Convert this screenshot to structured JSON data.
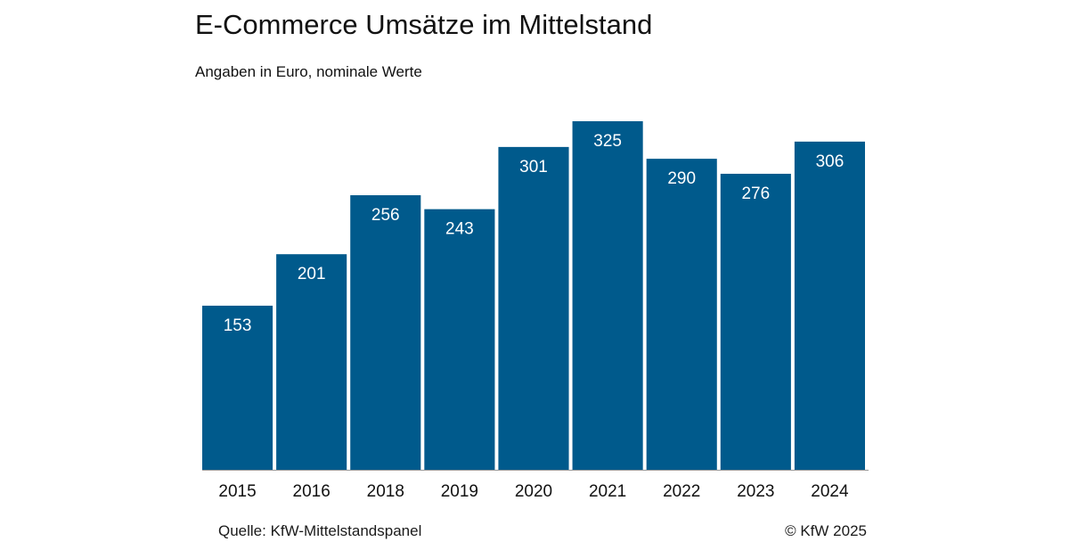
{
  "colors": {
    "bar": "#005a8c",
    "axis": "#9a9a9a",
    "label_on_bar": "#ffffff"
  },
  "footer": {
    "source": "Quelle: KfW-Mittelstandspanel",
    "copyright": "© KfW 2025"
  },
  "chart_data": {
    "type": "bar",
    "title": "E-Commerce Umsätze im Mittelstand",
    "subtitle": "Angaben in Euro, nominale Werte",
    "categories": [
      "2015",
      "2016",
      "2018",
      "2019",
      "2020",
      "2021",
      "2022",
      "2023",
      "2024"
    ],
    "values": [
      153,
      201,
      256,
      243,
      301,
      325,
      290,
      276,
      306
    ],
    "xlabel": "",
    "ylabel": "",
    "ylim": [
      0,
      325
    ],
    "grid": false,
    "legend": "none",
    "data_labels": "inside-top"
  }
}
